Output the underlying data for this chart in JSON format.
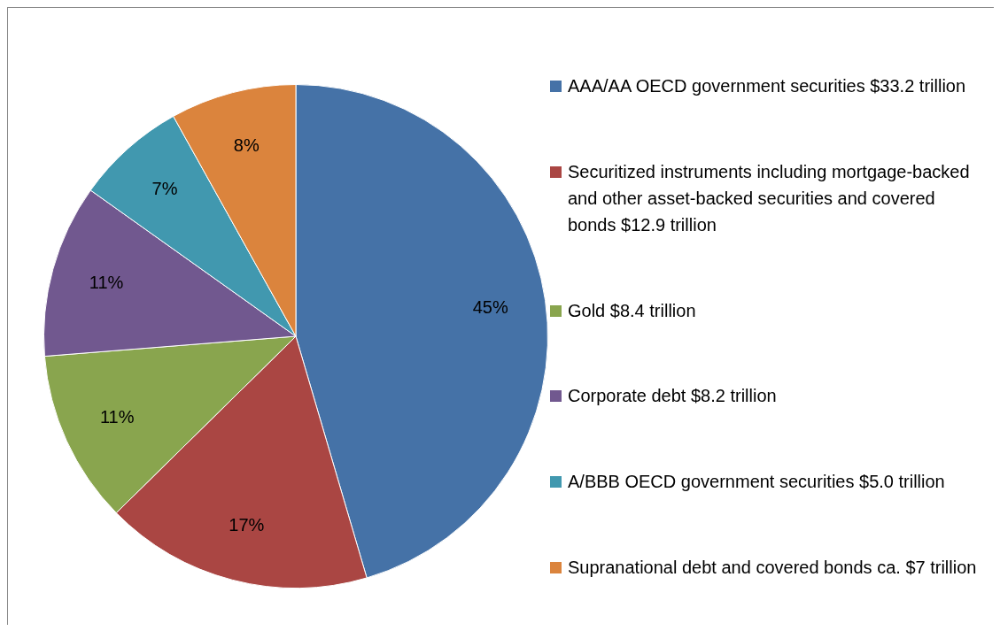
{
  "chart_data": {
    "type": "pie",
    "categories": [
      "AAA/AA OECD government securities $33.2 trillion",
      "Securitized instruments including mortgage-backed and other asset-backed securities and covered bonds $12.9 trillion",
      "Gold $8.4 trillion",
      "Corporate debt $8.2 trillion",
      "A/BBB OECD government securities $5.0 trillion",
      "Supranational debt and covered bonds ca. $7 trillion"
    ],
    "values": [
      45,
      17,
      11,
      11,
      7,
      8
    ],
    "value_labels": [
      "45%",
      "17%",
      "11%",
      "11%",
      "7%",
      "8%"
    ],
    "colors": [
      "#4572a7",
      "#aa4643",
      "#89a54e",
      "#71588f",
      "#4198af",
      "#db843d"
    ],
    "legend": "right"
  }
}
